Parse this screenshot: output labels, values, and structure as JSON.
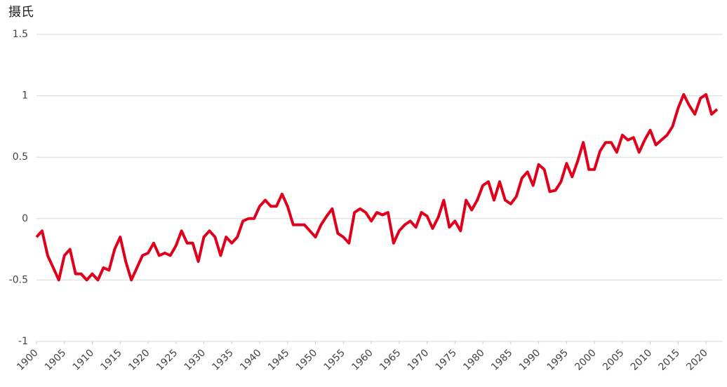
{
  "chart_data": {
    "type": "line",
    "y_label": "摄氏",
    "x": [
      1900,
      1901,
      1902,
      1903,
      1904,
      1905,
      1906,
      1907,
      1908,
      1909,
      1910,
      1911,
      1912,
      1913,
      1914,
      1915,
      1916,
      1917,
      1918,
      1919,
      1920,
      1921,
      1922,
      1923,
      1924,
      1925,
      1926,
      1927,
      1928,
      1929,
      1930,
      1931,
      1932,
      1933,
      1934,
      1935,
      1936,
      1937,
      1938,
      1939,
      1940,
      1941,
      1942,
      1943,
      1944,
      1945,
      1946,
      1947,
      1948,
      1949,
      1950,
      1951,
      1952,
      1953,
      1954,
      1955,
      1956,
      1957,
      1958,
      1959,
      1960,
      1961,
      1962,
      1963,
      1964,
      1965,
      1966,
      1967,
      1968,
      1969,
      1970,
      1971,
      1972,
      1973,
      1974,
      1975,
      1976,
      1977,
      1978,
      1979,
      1980,
      1981,
      1982,
      1983,
      1984,
      1985,
      1986,
      1987,
      1988,
      1989,
      1990,
      1991,
      1992,
      1993,
      1994,
      1995,
      1996,
      1997,
      1998,
      1999,
      2000,
      2001,
      2002,
      2003,
      2004,
      2005,
      2006,
      2007,
      2008,
      2009,
      2010,
      2011,
      2012,
      2013,
      2014,
      2015,
      2016,
      2017,
      2018,
      2019,
      2020,
      2021,
      2022
    ],
    "series": [
      {
        "name": "摄氏",
        "color": "#e0001b",
        "values": [
          -0.15,
          -0.1,
          -0.3,
          -0.4,
          -0.5,
          -0.3,
          -0.25,
          -0.45,
          -0.45,
          -0.5,
          -0.45,
          -0.5,
          -0.4,
          -0.42,
          -0.25,
          -0.15,
          -0.35,
          -0.5,
          -0.4,
          -0.3,
          -0.28,
          -0.2,
          -0.3,
          -0.28,
          -0.3,
          -0.22,
          -0.1,
          -0.2,
          -0.2,
          -0.35,
          -0.15,
          -0.1,
          -0.15,
          -0.3,
          -0.15,
          -0.2,
          -0.15,
          -0.02,
          0.0,
          0.0,
          0.1,
          0.15,
          0.1,
          0.1,
          0.2,
          0.1,
          -0.05,
          -0.05,
          -0.05,
          -0.1,
          -0.15,
          -0.05,
          0.02,
          0.08,
          -0.12,
          -0.15,
          -0.2,
          0.05,
          0.08,
          0.05,
          -0.02,
          0.05,
          0.03,
          0.05,
          -0.2,
          -0.1,
          -0.05,
          -0.02,
          -0.07,
          0.05,
          0.02,
          -0.08,
          0.01,
          0.15,
          -0.07,
          -0.02,
          -0.1,
          0.15,
          0.07,
          0.15,
          0.27,
          0.3,
          0.15,
          0.3,
          0.15,
          0.12,
          0.18,
          0.33,
          0.38,
          0.27,
          0.44,
          0.4,
          0.22,
          0.23,
          0.3,
          0.45,
          0.34,
          0.47,
          0.62,
          0.4,
          0.4,
          0.55,
          0.62,
          0.62,
          0.54,
          0.68,
          0.64,
          0.66,
          0.54,
          0.64,
          0.72,
          0.6,
          0.64,
          0.68,
          0.75,
          0.9,
          1.01,
          0.92,
          0.85,
          0.98,
          1.01,
          0.85,
          0.89
        ]
      }
    ],
    "xlim": [
      1900,
      2023
    ],
    "xticks": [
      1900,
      1905,
      1910,
      1915,
      1920,
      1925,
      1930,
      1935,
      1940,
      1945,
      1950,
      1955,
      1960,
      1965,
      1970,
      1975,
      1980,
      1985,
      1990,
      1995,
      2000,
      2005,
      2010,
      2015,
      2020
    ],
    "ylim": [
      -1,
      1.5
    ],
    "yticks": [
      1.5,
      1,
      0.5,
      0,
      -0.5,
      -1
    ],
    "grid": true
  }
}
